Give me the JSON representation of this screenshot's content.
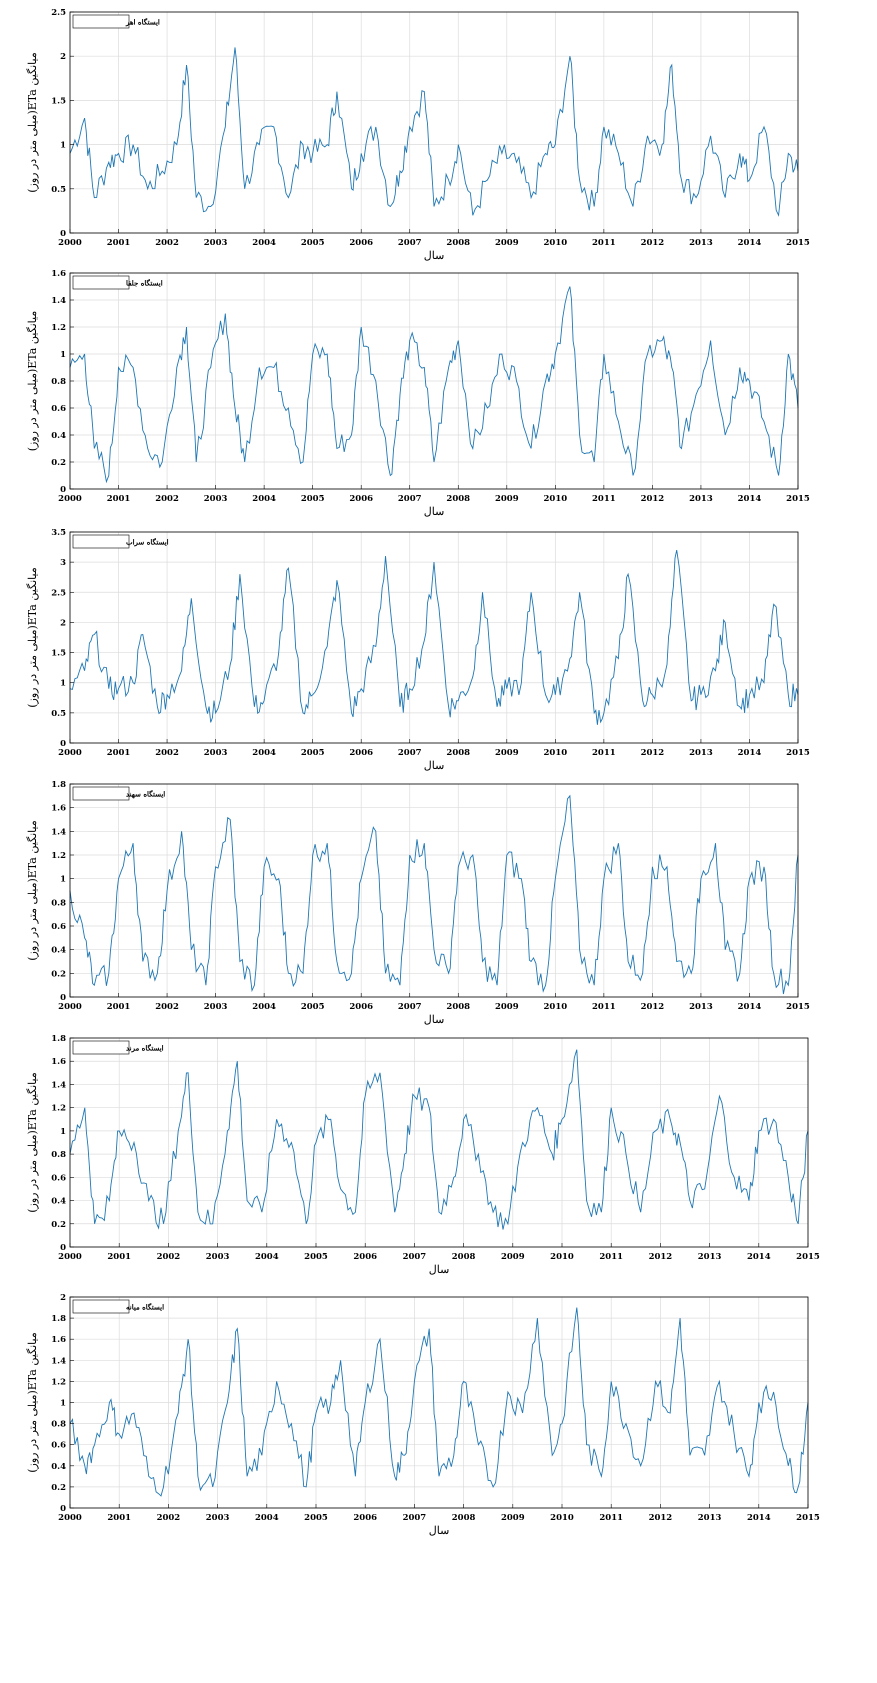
{
  "figure": {
    "line_color": "#1f77b4",
    "grid_color": "#dcdcdc",
    "xlabel": "سال",
    "ylabel": "میانگین ETa(میلی متر در روز)"
  },
  "chart_data": [
    {
      "type": "line",
      "title": "ایستگاه اهر",
      "xlabel": "سال",
      "ylabel": "میانگین ETa(میلی متر در روز)",
      "xlim": [
        2000,
        2015
      ],
      "ylim": [
        0,
        2.5
      ],
      "xticks": [
        2000,
        2001,
        2002,
        2003,
        2004,
        2005,
        2006,
        2007,
        2008,
        2009,
        2010,
        2011,
        2012,
        2013,
        2014,
        2015
      ],
      "yticks": [
        0,
        0.5,
        1,
        1.5,
        2,
        2.5
      ],
      "grid": true,
      "legend_position": "top-left",
      "series": [
        {
          "x": [
            2000.0,
            2000.3,
            2000.5,
            2000.8,
            2001.0,
            2001.3,
            2001.6,
            2001.9,
            2002.2,
            2002.4,
            2002.6,
            2002.9,
            2003.2,
            2003.4,
            2003.6,
            2003.9,
            2004.2,
            2004.5,
            2004.8,
            2005.0,
            2005.3,
            2005.5,
            2005.8,
            2006.0,
            2006.3,
            2006.6,
            2006.8,
            2007.0,
            2007.3,
            2007.5,
            2007.8,
            2008.0,
            2008.3,
            2008.6,
            2008.9,
            2009.2,
            2009.5,
            2009.8,
            2010.0,
            2010.3,
            2010.5,
            2010.8,
            2011.0,
            2011.3,
            2011.6,
            2011.9,
            2012.2,
            2012.4,
            2012.6,
            2012.9,
            2013.2,
            2013.5,
            2013.8,
            2014.0,
            2014.3,
            2014.6,
            2014.8,
            2015.0
          ],
          "values": [
            0.9,
            1.3,
            0.4,
            0.8,
            0.9,
            1.0,
            0.5,
            0.7,
            1.0,
            1.9,
            0.4,
            0.3,
            1.2,
            2.1,
            0.5,
            1.0,
            1.2,
            0.4,
            1.0,
            0.9,
            1.0,
            1.6,
            0.5,
            0.9,
            1.2,
            0.3,
            0.7,
            1.2,
            1.6,
            0.3,
            0.6,
            1.0,
            0.2,
            0.6,
            0.9,
            0.8,
            0.4,
            0.9,
            1.0,
            2.0,
            0.6,
            0.3,
            1.2,
            0.9,
            0.3,
            1.1,
            1.0,
            1.9,
            0.6,
            0.4,
            1.1,
            0.4,
            0.9,
            0.6,
            1.2,
            0.2,
            0.9,
            0.7
          ]
        }
      ]
    },
    {
      "type": "line",
      "title": "ایستگاه جلفا",
      "xlabel": "سال",
      "ylabel": "میانگین ETa(میلی متر در روز)",
      "xlim": [
        2000,
        2015
      ],
      "ylim": [
        0,
        1.6
      ],
      "xticks": [
        2000,
        2001,
        2002,
        2003,
        2004,
        2005,
        2006,
        2007,
        2008,
        2009,
        2010,
        2011,
        2012,
        2013,
        2014,
        2015
      ],
      "yticks": [
        0,
        0.2,
        0.4,
        0.6,
        0.8,
        1,
        1.2,
        1.4,
        1.6
      ],
      "grid": true,
      "legend_position": "top-left",
      "series": [
        {
          "x": [
            2000.0,
            2000.3,
            2000.5,
            2000.8,
            2001.0,
            2001.3,
            2001.6,
            2001.9,
            2002.2,
            2002.4,
            2002.6,
            2002.9,
            2003.2,
            2003.4,
            2003.6,
            2003.9,
            2004.2,
            2004.5,
            2004.8,
            2005.0,
            2005.3,
            2005.5,
            2005.8,
            2006.0,
            2006.3,
            2006.6,
            2006.8,
            2007.0,
            2007.3,
            2007.5,
            2007.8,
            2008.0,
            2008.3,
            2008.6,
            2008.9,
            2009.2,
            2009.5,
            2009.8,
            2010.0,
            2010.3,
            2010.5,
            2010.8,
            2011.0,
            2011.3,
            2011.6,
            2011.9,
            2012.2,
            2012.4,
            2012.6,
            2012.9,
            2013.2,
            2013.5,
            2013.8,
            2014.0,
            2014.3,
            2014.6,
            2014.8,
            2015.0
          ],
          "values": [
            0.9,
            1.0,
            0.3,
            0.1,
            0.9,
            0.9,
            0.3,
            0.2,
            0.9,
            1.2,
            0.2,
            0.9,
            1.3,
            0.6,
            0.2,
            0.9,
            0.9,
            0.6,
            0.2,
            1.0,
            1.0,
            0.3,
            0.4,
            1.2,
            0.8,
            0.1,
            0.7,
            1.1,
            0.9,
            0.2,
            0.9,
            1.1,
            0.3,
            0.6,
            1.0,
            0.8,
            0.3,
            0.8,
            1.0,
            1.5,
            0.4,
            0.2,
            1.0,
            0.5,
            0.1,
            1.0,
            1.1,
            0.9,
            0.3,
            0.7,
            1.1,
            0.4,
            0.9,
            0.8,
            0.5,
            0.1,
            1.0,
            0.6
          ]
        }
      ]
    },
    {
      "type": "line",
      "title": "ایستگاه سراب",
      "xlabel": "سال",
      "ylabel": "میانگین ETa(میلی متر در روز)",
      "xlim": [
        2000,
        2015
      ],
      "ylim": [
        0,
        3.5
      ],
      "xticks": [
        2000,
        2001,
        2002,
        2003,
        2004,
        2005,
        2006,
        2007,
        2008,
        2009,
        2010,
        2011,
        2012,
        2013,
        2014,
        2015
      ],
      "yticks": [
        0,
        0.5,
        1,
        1.5,
        2,
        2.5,
        3,
        3.5
      ],
      "grid": true,
      "legend_position": "top-left",
      "series": [
        {
          "x": [
            2000.0,
            2000.3,
            2000.5,
            2000.8,
            2001.0,
            2001.3,
            2001.5,
            2001.8,
            2002.0,
            2002.3,
            2002.5,
            2002.8,
            2003.0,
            2003.3,
            2003.5,
            2003.8,
            2004.0,
            2004.3,
            2004.5,
            2004.8,
            2005.0,
            2005.3,
            2005.5,
            2005.8,
            2006.0,
            2006.3,
            2006.5,
            2006.8,
            2007.0,
            2007.3,
            2007.5,
            2007.8,
            2008.0,
            2008.3,
            2008.5,
            2008.8,
            2009.0,
            2009.3,
            2009.5,
            2009.8,
            2010.0,
            2010.3,
            2010.5,
            2010.8,
            2011.0,
            2011.3,
            2011.5,
            2011.8,
            2012.0,
            2012.3,
            2012.5,
            2012.8,
            2013.0,
            2013.3,
            2013.5,
            2013.8,
            2014.0,
            2014.3,
            2014.5,
            2014.8,
            2015.0
          ],
          "values": [
            0.9,
            1.2,
            1.8,
            0.9,
            0.9,
            1.0,
            1.8,
            0.6,
            0.8,
            1.2,
            2.4,
            0.6,
            0.5,
            1.3,
            2.8,
            0.6,
            0.7,
            1.5,
            2.9,
            0.5,
            0.8,
            1.6,
            2.7,
            0.5,
            0.9,
            1.6,
            3.1,
            0.6,
            0.9,
            1.7,
            3.0,
            0.6,
            0.7,
            1.1,
            2.5,
            0.6,
            0.9,
            1.0,
            2.5,
            0.8,
            0.8,
            1.4,
            2.5,
            0.5,
            0.5,
            1.4,
            2.8,
            0.7,
            0.8,
            1.3,
            3.2,
            0.7,
            0.8,
            1.2,
            2.0,
            0.6,
            0.8,
            1.0,
            2.3,
            0.8,
            0.8
          ]
        }
      ]
    },
    {
      "type": "line",
      "title": "ایستگاه سهند",
      "xlabel": "سال",
      "ylabel": "میانگین ETa(میلی متر در روز)",
      "xlim": [
        2000,
        2015
      ],
      "ylim": [
        0,
        1.8
      ],
      "xticks": [
        2000,
        2001,
        2002,
        2003,
        2004,
        2005,
        2006,
        2007,
        2008,
        2009,
        2010,
        2011,
        2012,
        2013,
        2014,
        2015
      ],
      "yticks": [
        0,
        0.2,
        0.4,
        0.6,
        0.8,
        1,
        1.2,
        1.4,
        1.6,
        1.8
      ],
      "grid": true,
      "legend_position": "top-left",
      "series": [
        {
          "x": [
            2000.0,
            2000.3,
            2000.5,
            2000.8,
            2001.0,
            2001.3,
            2001.5,
            2001.8,
            2002.0,
            2002.3,
            2002.5,
            2002.8,
            2003.0,
            2003.3,
            2003.5,
            2003.8,
            2004.0,
            2004.3,
            2004.5,
            2004.8,
            2005.0,
            2005.3,
            2005.5,
            2005.8,
            2006.0,
            2006.3,
            2006.5,
            2006.8,
            2007.0,
            2007.3,
            2007.5,
            2007.8,
            2008.0,
            2008.3,
            2008.5,
            2008.8,
            2009.0,
            2009.3,
            2009.5,
            2009.8,
            2010.0,
            2010.3,
            2010.5,
            2010.8,
            2011.0,
            2011.3,
            2011.5,
            2011.8,
            2012.0,
            2012.3,
            2012.5,
            2012.8,
            2013.0,
            2013.3,
            2013.5,
            2013.8,
            2014.0,
            2014.3,
            2014.5,
            2014.8,
            2015.0
          ],
          "values": [
            0.9,
            0.5,
            0.1,
            0.2,
            1.0,
            1.3,
            0.3,
            0.2,
            0.9,
            1.4,
            0.4,
            0.1,
            1.1,
            1.5,
            0.3,
            0.1,
            1.1,
            1.0,
            0.2,
            0.2,
            1.2,
            1.3,
            0.3,
            0.2,
            1.0,
            1.4,
            0.2,
            0.1,
            1.2,
            1.3,
            0.4,
            0.2,
            1.1,
            1.2,
            0.3,
            0.1,
            1.2,
            1.0,
            0.3,
            0.1,
            1.0,
            1.7,
            0.4,
            0.1,
            1.0,
            1.3,
            0.3,
            0.2,
            1.1,
            1.1,
            0.3,
            0.2,
            1.0,
            1.3,
            0.4,
            0.2,
            1.0,
            1.1,
            0.2,
            0.1,
            1.2
          ]
        }
      ]
    },
    {
      "type": "line",
      "title": "ایستگاه مرند",
      "xlabel": "سال",
      "ylabel": "میانگین ETa(میلی متر در روز)",
      "xlim": [
        2000,
        2015
      ],
      "ylim": [
        0,
        1.8
      ],
      "xticks": [
        2000,
        2001,
        2002,
        2003,
        2004,
        2005,
        2006,
        2007,
        2008,
        2009,
        2010,
        2011,
        2012,
        2013,
        2014,
        2015
      ],
      "yticks": [
        0,
        0.2,
        0.4,
        0.6,
        0.8,
        1,
        1.2,
        1.4,
        1.6,
        1.8
      ],
      "grid": true,
      "legend_position": "top-left",
      "series": [
        {
          "x": [
            2000.0,
            2000.3,
            2000.5,
            2000.8,
            2001.0,
            2001.3,
            2001.6,
            2001.9,
            2002.2,
            2002.4,
            2002.6,
            2002.9,
            2003.2,
            2003.4,
            2003.6,
            2003.9,
            2004.2,
            2004.5,
            2004.8,
            2005.0,
            2005.3,
            2005.5,
            2005.8,
            2006.0,
            2006.3,
            2006.6,
            2006.8,
            2007.0,
            2007.3,
            2007.5,
            2007.8,
            2008.0,
            2008.3,
            2008.6,
            2008.9,
            2009.2,
            2009.5,
            2009.8,
            2010.0,
            2010.3,
            2010.5,
            2010.8,
            2011.0,
            2011.3,
            2011.6,
            2011.9,
            2012.2,
            2012.4,
            2012.6,
            2012.9,
            2013.2,
            2013.5,
            2013.8,
            2014.0,
            2014.3,
            2014.6,
            2014.8,
            2015.0
          ],
          "values": [
            0.8,
            1.2,
            0.2,
            0.4,
            1.0,
            0.9,
            0.4,
            0.2,
            1.0,
            1.5,
            0.3,
            0.2,
            1.0,
            1.6,
            0.4,
            0.3,
            1.1,
            0.9,
            0.2,
            0.9,
            1.1,
            0.5,
            0.3,
            1.3,
            1.5,
            0.3,
            0.8,
            1.3,
            1.2,
            0.3,
            0.6,
            1.1,
            0.8,
            0.3,
            0.2,
            0.9,
            1.2,
            0.8,
            1.1,
            1.7,
            0.4,
            0.3,
            1.2,
            0.8,
            0.3,
            1.0,
            1.1,
            0.9,
            0.4,
            0.5,
            1.3,
            0.6,
            0.4,
            1.0,
            1.1,
            0.6,
            0.2,
            1.0
          ]
        }
      ]
    },
    {
      "type": "line",
      "title": "ایستگاه میانه",
      "xlabel": "سال",
      "ylabel": "میانگین ETa(میلی متر در روز)",
      "xlim": [
        2000,
        2015
      ],
      "ylim": [
        0,
        2
      ],
      "xticks": [
        2000,
        2001,
        2002,
        2003,
        2004,
        2005,
        2006,
        2007,
        2008,
        2009,
        2010,
        2011,
        2012,
        2013,
        2014,
        2015
      ],
      "yticks": [
        0,
        0.2,
        0.4,
        0.6,
        0.8,
        1,
        1.2,
        1.4,
        1.6,
        1.8,
        2
      ],
      "grid": true,
      "legend_position": "top-left",
      "series": [
        {
          "x": [
            2000.0,
            2000.3,
            2000.5,
            2000.8,
            2001.0,
            2001.3,
            2001.6,
            2001.9,
            2002.2,
            2002.4,
            2002.6,
            2002.9,
            2003.2,
            2003.4,
            2003.6,
            2003.9,
            2004.2,
            2004.5,
            2004.8,
            2005.0,
            2005.3,
            2005.5,
            2005.8,
            2006.0,
            2006.3,
            2006.6,
            2006.8,
            2007.0,
            2007.3,
            2007.5,
            2007.8,
            2008.0,
            2008.3,
            2008.6,
            2008.9,
            2009.2,
            2009.5,
            2009.8,
            2010.0,
            2010.3,
            2010.5,
            2010.8,
            2011.0,
            2011.3,
            2011.6,
            2011.9,
            2012.2,
            2012.4,
            2012.6,
            2012.9,
            2013.2,
            2013.5,
            2013.8,
            2014.0,
            2014.3,
            2014.6,
            2014.8,
            2015.0
          ],
          "values": [
            0.8,
            0.4,
            0.6,
            1.0,
            0.7,
            0.9,
            0.3,
            0.2,
            0.9,
            1.6,
            0.3,
            0.2,
            1.0,
            1.7,
            0.3,
            0.5,
            1.2,
            0.8,
            0.2,
            0.9,
            1.0,
            1.4,
            0.3,
            1.0,
            1.6,
            0.3,
            0.5,
            1.2,
            1.7,
            0.3,
            0.5,
            1.2,
            0.6,
            0.2,
            1.1,
            0.9,
            1.8,
            0.5,
            0.8,
            1.9,
            0.6,
            0.3,
            1.2,
            0.8,
            0.4,
            1.2,
            0.9,
            1.8,
            0.5,
            0.5,
            1.2,
            0.7,
            0.3,
            1.0,
            1.1,
            0.4,
            0.2,
            1.0
          ]
        }
      ]
    }
  ]
}
